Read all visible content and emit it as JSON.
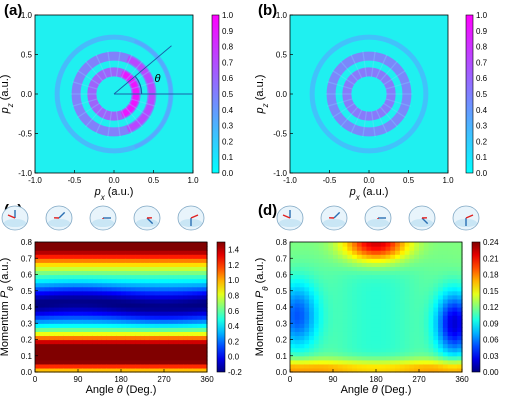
{
  "panels": {
    "a": {
      "label": "(a)"
    },
    "b": {
      "label": "(b)"
    },
    "c": {
      "label": "(c)"
    },
    "d": {
      "label": "(d)"
    }
  },
  "chart_data": [
    {
      "id": "a",
      "type": "heatmap",
      "title": "",
      "xlabel": "p_x (a.u.)",
      "ylabel": "p_z (a.u.)",
      "xlim": [
        -1.0,
        1.0
      ],
      "ylim": [
        -1.0,
        1.0
      ],
      "x_ticks": [
        "-1.0",
        "-0.5",
        "0.0",
        "0.5",
        "1.0"
      ],
      "y_ticks": [
        "-1.0",
        "-0.5",
        "0.0",
        "0.5",
        "1.0"
      ],
      "colorbar_ticks": [
        "0.0",
        "0.1",
        "0.2",
        "0.3",
        "0.4",
        "0.5",
        "0.6",
        "0.7",
        "0.8",
        "0.9",
        "1.0"
      ],
      "colorbar_range": [
        0.0,
        1.0
      ],
      "colormap": [
        "#00ffff",
        "#ff00ff"
      ],
      "annotation": "θ",
      "rings": [
        {
          "radius": 0.28,
          "intensity": 0.85
        },
        {
          "radius": 0.48,
          "intensity": 0.65
        },
        {
          "radius": 0.72,
          "intensity": 0.25
        }
      ],
      "ring_asymmetry": "stronger toward +p_x side"
    },
    {
      "id": "b",
      "type": "heatmap",
      "title": "",
      "xlabel": "p_x (a.u.)",
      "ylabel": "p_z (a.u.)",
      "xlim": [
        -1.0,
        1.0
      ],
      "ylim": [
        -1.0,
        1.0
      ],
      "x_ticks": [
        "-1.0",
        "-0.5",
        "0.0",
        "0.5",
        "1.0"
      ],
      "y_ticks": [
        "-1.0",
        "-0.5",
        "0.0",
        "0.5",
        "1.0"
      ],
      "colorbar_ticks": [
        "0.0",
        "0.1",
        "0.2",
        "0.3",
        "0.4",
        "0.5",
        "0.6",
        "0.7",
        "0.8",
        "0.9",
        "1.0"
      ],
      "colorbar_range": [
        0.0,
        1.0
      ],
      "colormap": [
        "#00ffff",
        "#ff00ff"
      ],
      "rings": [
        {
          "radius": 0.28,
          "intensity": 0.7
        },
        {
          "radius": 0.48,
          "intensity": 0.6
        },
        {
          "radius": 0.72,
          "intensity": 0.2
        }
      ]
    },
    {
      "id": "c",
      "type": "heatmap",
      "title": "",
      "xlabel": "Angle θ (Deg.)",
      "ylabel": "Momentum P_θ (a.u.)",
      "xlim": [
        0,
        360
      ],
      "ylim": [
        0.0,
        0.8
      ],
      "x_ticks": [
        "0",
        "90",
        "180",
        "270",
        "360"
      ],
      "y_ticks": [
        "0.0",
        "0.1",
        "0.2",
        "0.3",
        "0.4",
        "0.5",
        "0.6",
        "0.7",
        "0.8"
      ],
      "colorbar_ticks": [
        "0.0",
        "0.2",
        "0.4",
        "0.6",
        "0.8",
        "1.0",
        "1.2",
        "1.4"
      ],
      "colorbar_ticks_low": [
        "-0.2"
      ],
      "colorbar_range": [
        -0.2,
        1.5
      ],
      "colormap": "jet",
      "bands": [
        {
          "momentum": 0.12,
          "value": 1.4
        },
        {
          "momentum": 0.42,
          "value": -0.2
        },
        {
          "momentum": 0.8,
          "value": 1.3
        }
      ]
    },
    {
      "id": "d",
      "type": "heatmap",
      "title": "",
      "xlabel": "Angle θ (Deg.)",
      "ylabel": "Momentum P_θ (a.u.)",
      "xlim": [
        0,
        360
      ],
      "ylim": [
        0.0,
        0.8
      ],
      "x_ticks": [
        "0",
        "90",
        "180",
        "270",
        "360"
      ],
      "y_ticks": [
        "0.0",
        "0.1",
        "0.2",
        "0.3",
        "0.4",
        "0.5",
        "0.6",
        "0.7",
        "0.8"
      ],
      "colorbar_ticks": [
        "0.00",
        "0.03",
        "0.06",
        "0.09",
        "0.12",
        "0.15",
        "0.18",
        "0.21",
        "0.24"
      ],
      "colorbar_range": [
        0.0,
        0.24
      ],
      "colormap": "jet",
      "features": [
        {
          "theta": 180,
          "momentum": 0.78,
          "value": 0.24
        },
        {
          "theta": 20,
          "momentum": 0.35,
          "value": 0.04
        },
        {
          "theta": 340,
          "momentum": 0.3,
          "value": 0.0
        }
      ]
    }
  ],
  "spin_icons": {
    "c": [
      "ball-arrows-1",
      "ball-arrows-2",
      "ball-arrows-3",
      "ball-arrows-4",
      "ball-arrows-5"
    ],
    "d": [
      "ball-arrows-1",
      "ball-arrows-2",
      "ball-arrows-3",
      "ball-arrows-4",
      "ball-arrows-5"
    ]
  }
}
